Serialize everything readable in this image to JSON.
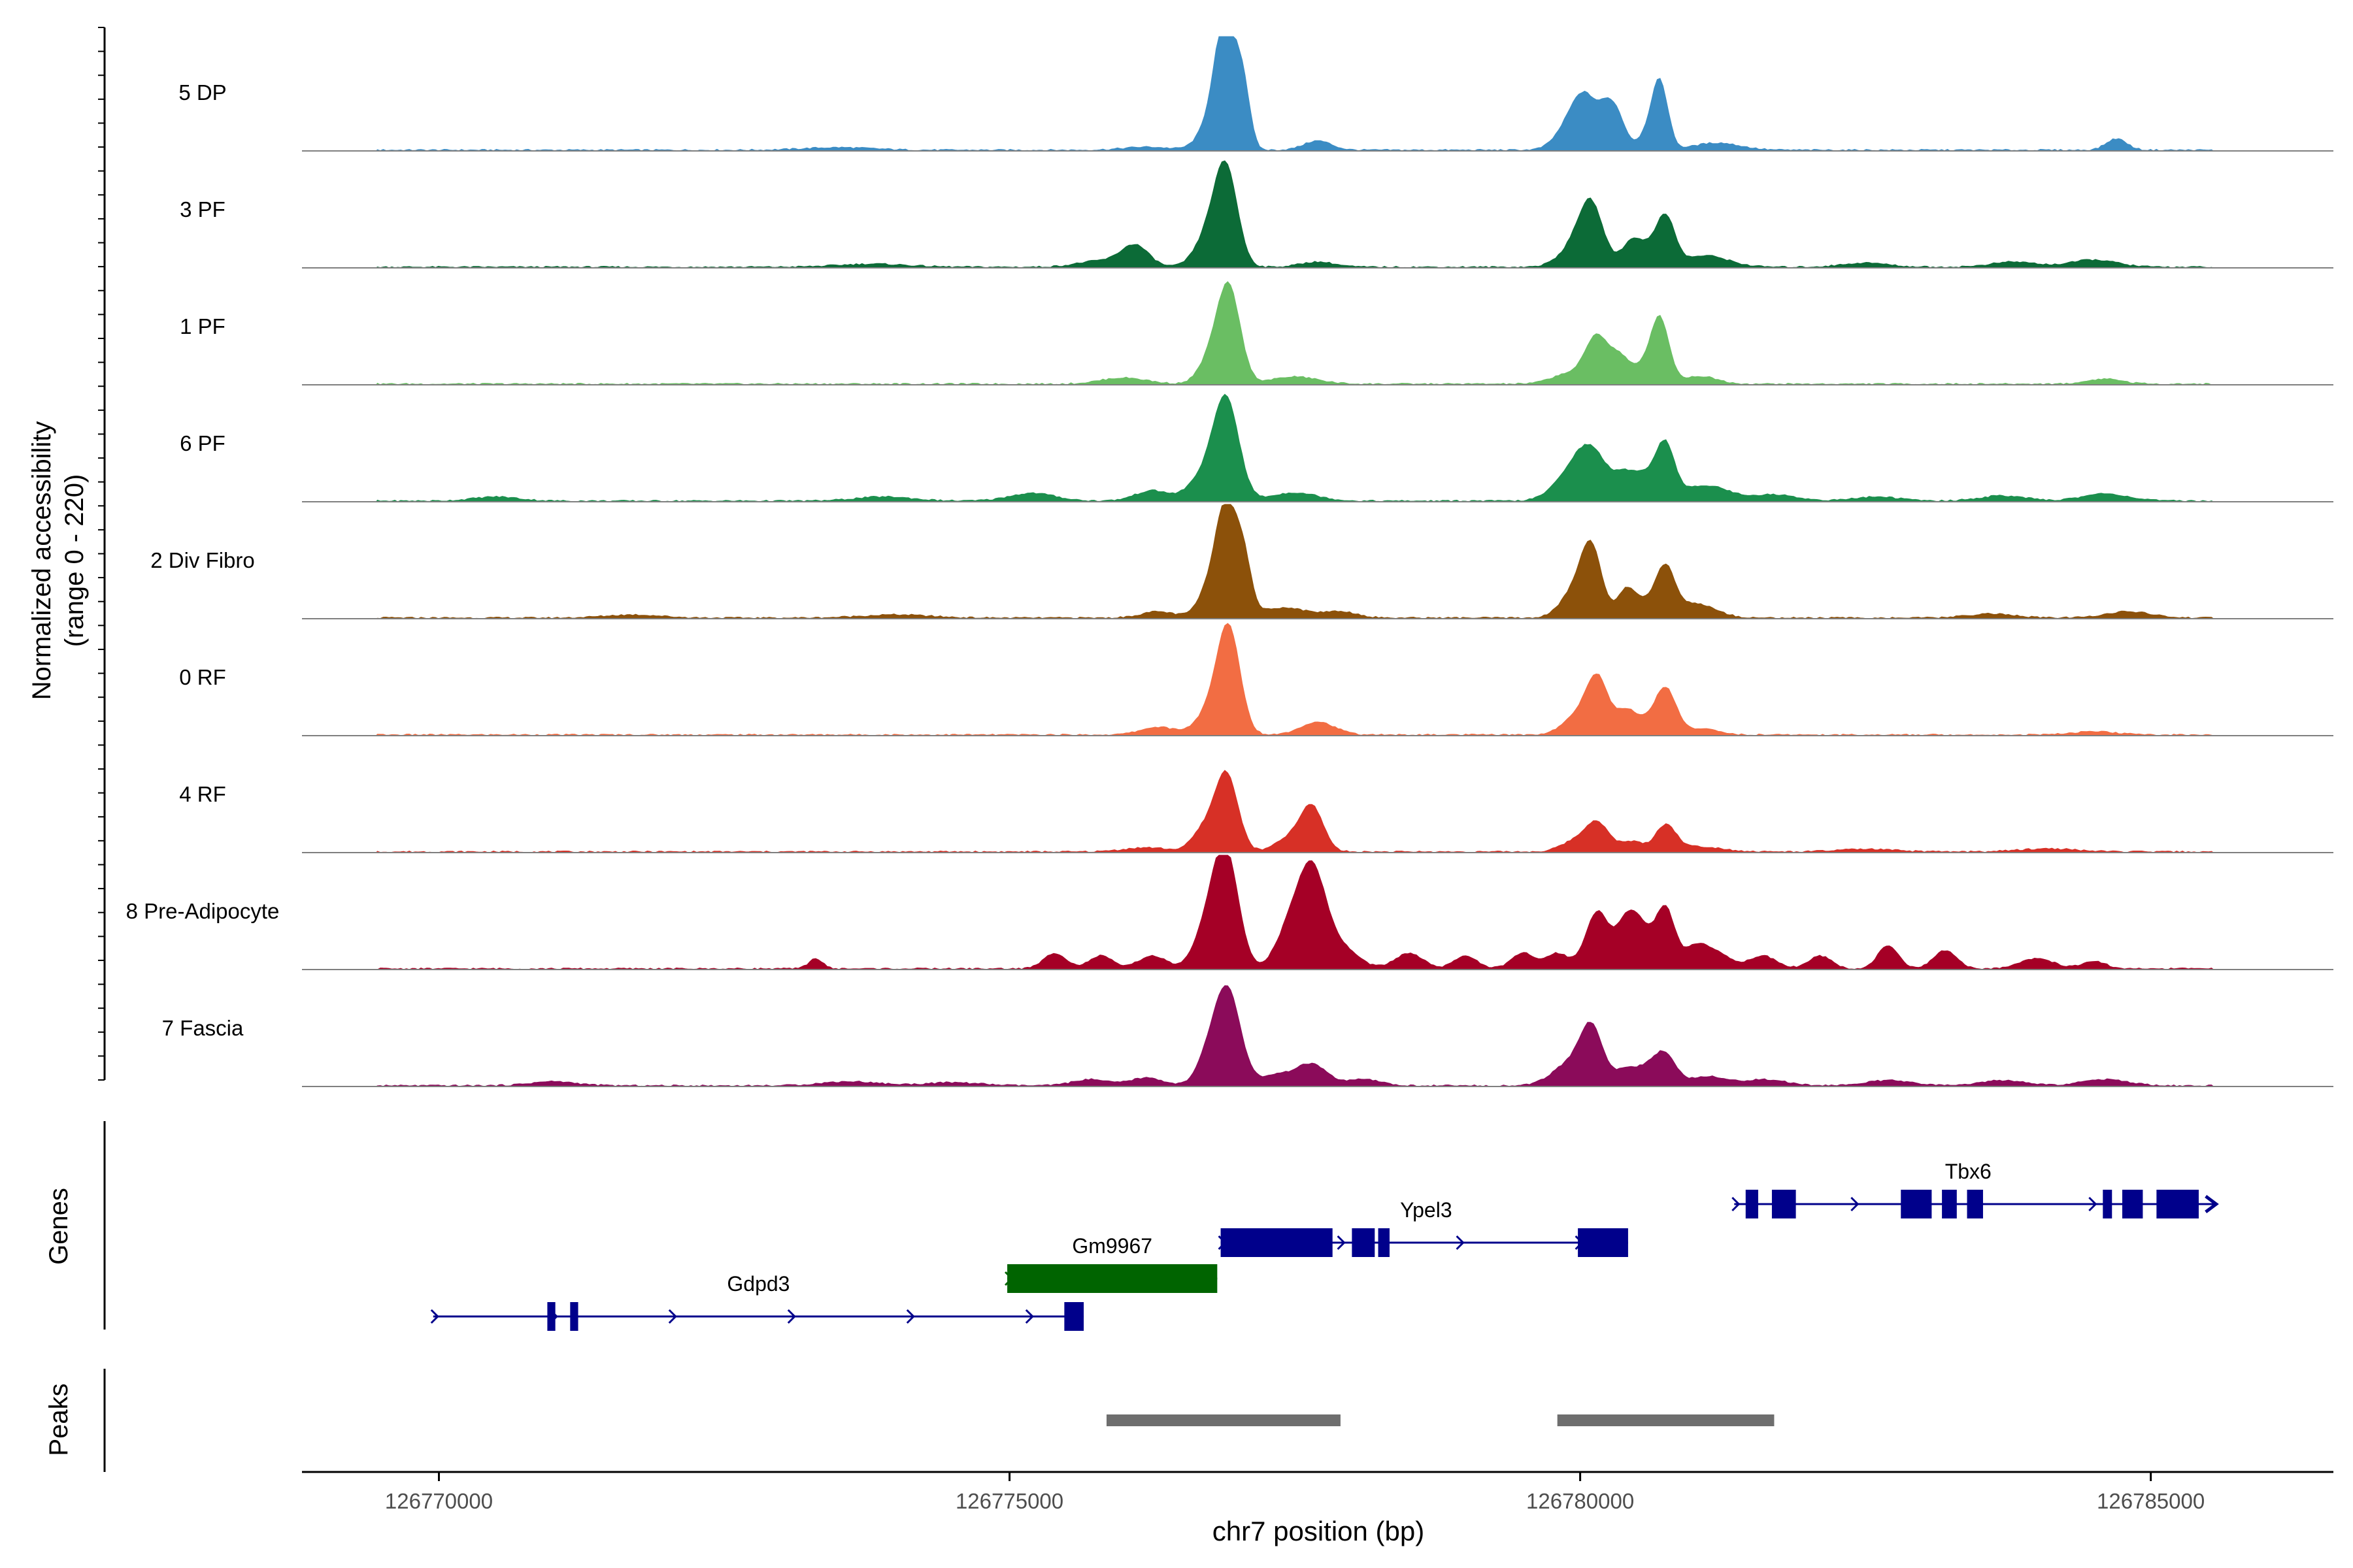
{
  "chart_data": {
    "type": "area",
    "title": "",
    "xlabel": "chr7 position (bp)",
    "ylabel_line1": "Normalized accessibility",
    "ylabel_line2": "(range 0 - 220)",
    "ylim": [
      0,
      220
    ],
    "xlim": [
      126768800,
      126786600
    ],
    "x_ticks": [
      126770000,
      126775000,
      126780000,
      126785000
    ],
    "x_tick_labels": [
      "126770000",
      "126775000",
      "126780000",
      "126785000"
    ],
    "track_labels": {
      "genes": "Genes",
      "peaks": "Peaks"
    },
    "region_start": 126769450,
    "region_end": 126785550,
    "series": [
      {
        "name": "5 DP",
        "color": "#3b8cc4",
        "peaks": [
          [
            126776900,
            220,
            90
          ],
          [
            126777050,
            100,
            60
          ],
          [
            126776800,
            60,
            120
          ],
          [
            126777700,
            18,
            120
          ],
          [
            126780050,
            90,
            110
          ],
          [
            126780250,
            70,
            80
          ],
          [
            126779900,
            40,
            120
          ],
          [
            126780350,
            35,
            70
          ],
          [
            126780700,
            120,
            70
          ],
          [
            126780600,
            30,
            90
          ],
          [
            126781200,
            14,
            200
          ],
          [
            126784700,
            22,
            90
          ],
          [
            126776200,
            6,
            200
          ],
          [
            126773500,
            5,
            300
          ]
        ]
      },
      {
        "name": "3 PF",
        "color": "#0c6b37",
        "peaks": [
          [
            126776900,
            175,
            100
          ],
          [
            126776750,
            60,
            120
          ],
          [
            126776100,
            40,
            120
          ],
          [
            126777700,
            10,
            150
          ],
          [
            126780100,
            90,
            100
          ],
          [
            126780000,
            50,
            150
          ],
          [
            126780450,
            40,
            90
          ],
          [
            126780750,
            85,
            80
          ],
          [
            126780600,
            30,
            120
          ],
          [
            126781100,
            22,
            200
          ],
          [
            126784500,
            14,
            200
          ],
          [
            126783800,
            10,
            200
          ],
          [
            126782500,
            8,
            200
          ],
          [
            126775800,
            12,
            200
          ],
          [
            126773800,
            6,
            300
          ]
        ]
      },
      {
        "name": "1 PF",
        "color": "#6abe63",
        "peaks": [
          [
            126776920,
            185,
            100
          ],
          [
            126776750,
            40,
            100
          ],
          [
            126776000,
            12,
            200
          ],
          [
            126777500,
            14,
            200
          ],
          [
            126780150,
            90,
            100
          ],
          [
            126780350,
            45,
            80
          ],
          [
            126780700,
            120,
            80
          ],
          [
            126780550,
            30,
            100
          ],
          [
            126781050,
            15,
            150
          ],
          [
            126779900,
            20,
            150
          ],
          [
            126784600,
            10,
            150
          ]
        ]
      },
      {
        "name": "6 PF",
        "color": "#1b8f4d",
        "peaks": [
          [
            126776900,
            190,
            110
          ],
          [
            126776700,
            45,
            130
          ],
          [
            126776250,
            20,
            150
          ],
          [
            126775200,
            15,
            200
          ],
          [
            126777500,
            16,
            200
          ],
          [
            126780100,
            90,
            140
          ],
          [
            126779900,
            40,
            150
          ],
          [
            126780400,
            40,
            100
          ],
          [
            126780750,
            90,
            80
          ],
          [
            126780600,
            45,
            120
          ],
          [
            126781100,
            30,
            200
          ],
          [
            126781700,
            12,
            200
          ],
          [
            126784600,
            14,
            200
          ],
          [
            126783700,
            10,
            200
          ],
          [
            126782600,
            8,
            200
          ],
          [
            126773900,
            8,
            250
          ],
          [
            126770500,
            8,
            200
          ]
        ]
      },
      {
        "name": "2 Div Fibro",
        "color": "#8c510a",
        "peaks": [
          [
            126776900,
            205,
            90
          ],
          [
            126777050,
            100,
            70
          ],
          [
            126776750,
            50,
            100
          ],
          [
            126776300,
            12,
            150
          ],
          [
            126777400,
            20,
            200
          ],
          [
            126777900,
            12,
            150
          ],
          [
            126780100,
            125,
            90
          ],
          [
            126779950,
            50,
            120
          ],
          [
            126780400,
            50,
            80
          ],
          [
            126780750,
            80,
            80
          ],
          [
            126780600,
            30,
            120
          ],
          [
            126781000,
            28,
            180
          ],
          [
            126784800,
            12,
            200
          ],
          [
            126783600,
            8,
            200
          ],
          [
            126771700,
            6,
            250
          ],
          [
            126774000,
            6,
            300
          ]
        ]
      },
      {
        "name": "0 RF",
        "color": "#f26d43",
        "peaks": [
          [
            126776920,
            200,
            100
          ],
          [
            126776750,
            40,
            120
          ],
          [
            126776300,
            15,
            150
          ],
          [
            126777700,
            25,
            150
          ],
          [
            126780150,
            110,
            100
          ],
          [
            126779950,
            30,
            120
          ],
          [
            126780400,
            35,
            80
          ],
          [
            126780750,
            85,
            90
          ],
          [
            126780550,
            25,
            120
          ],
          [
            126781050,
            12,
            150
          ],
          [
            126784500,
            6,
            200
          ]
        ]
      },
      {
        "name": "4 RF",
        "color": "#d73026",
        "peaks": [
          [
            126776900,
            150,
            100
          ],
          [
            126776700,
            40,
            100
          ],
          [
            126777650,
            85,
            100
          ],
          [
            126777450,
            25,
            120
          ],
          [
            126776200,
            8,
            200
          ],
          [
            126780150,
            55,
            100
          ],
          [
            126779950,
            20,
            120
          ],
          [
            126780450,
            20,
            100
          ],
          [
            126780750,
            50,
            90
          ],
          [
            126781050,
            10,
            200
          ],
          [
            126784100,
            6,
            250
          ],
          [
            126782500,
            5,
            250
          ]
        ]
      },
      {
        "name": "8 Pre-Adipocyte",
        "color": "#a50026",
        "peaks": [
          [
            126776900,
            200,
            110
          ],
          [
            126776750,
            80,
            120
          ],
          [
            126777650,
            180,
            120
          ],
          [
            126777450,
            70,
            120
          ],
          [
            126777900,
            40,
            150
          ],
          [
            126773300,
            20,
            60
          ],
          [
            126775400,
            30,
            100
          ],
          [
            126775800,
            25,
            100
          ],
          [
            126776250,
            25,
            120
          ],
          [
            126778500,
            30,
            120
          ],
          [
            126779000,
            25,
            100
          ],
          [
            126779500,
            30,
            100
          ],
          [
            126780150,
            110,
            100
          ],
          [
            126780400,
            80,
            90
          ],
          [
            126780750,
            110,
            80
          ],
          [
            126780550,
            70,
            100
          ],
          [
            126781200,
            30,
            120
          ],
          [
            126781600,
            25,
            120
          ],
          [
            126782100,
            25,
            100
          ],
          [
            126782700,
            45,
            90
          ],
          [
            126783200,
            35,
            100
          ],
          [
            126784000,
            20,
            150
          ],
          [
            126784500,
            15,
            100
          ],
          [
            126779800,
            30,
            100
          ],
          [
            126781000,
            40,
            100
          ]
        ]
      },
      {
        "name": "7 Fascia",
        "color": "#8b0b5a",
        "peaks": [
          [
            126776900,
            150,
            100
          ],
          [
            126776750,
            60,
            100
          ],
          [
            126777000,
            40,
            100
          ],
          [
            126777650,
            40,
            130
          ],
          [
            126776200,
            15,
            150
          ],
          [
            126775700,
            12,
            150
          ],
          [
            126777350,
            20,
            150
          ],
          [
            126778100,
            12,
            150
          ],
          [
            126780100,
            105,
            100
          ],
          [
            126779900,
            40,
            150
          ],
          [
            126780400,
            30,
            100
          ],
          [
            126780750,
            55,
            90
          ],
          [
            126780600,
            30,
            100
          ],
          [
            126781100,
            18,
            150
          ],
          [
            126781600,
            12,
            200
          ],
          [
            126784600,
            12,
            200
          ],
          [
            126783700,
            10,
            200
          ],
          [
            126782700,
            10,
            200
          ],
          [
            126771000,
            8,
            200
          ],
          [
            126773600,
            8,
            250
          ],
          [
            126774500,
            6,
            250
          ]
        ]
      }
    ],
    "genes": [
      {
        "name": "Gdpd3",
        "color": "#00008b",
        "start": 126769950,
        "end": 126775650,
        "row": 3,
        "label_x": 126772800,
        "exons": [
          [
            126770950,
            126771020
          ],
          [
            126771150,
            126771220
          ],
          [
            126775480,
            126775650
          ]
        ]
      },
      {
        "name": "Gm9967",
        "color": "#006400",
        "start": 126774980,
        "end": 126776820,
        "row": 2,
        "label_x": 126775900,
        "exons": [
          [
            126774980,
            126776820
          ]
        ]
      },
      {
        "name": "Ypel3",
        "color": "#00008b",
        "start": 126776850,
        "end": 126780420,
        "row": 1,
        "label_x": 126778650,
        "exons": [
          [
            126776850,
            126777830
          ],
          [
            126778000,
            126778200
          ],
          [
            126778230,
            126778330
          ],
          [
            126779980,
            126780420
          ]
        ]
      },
      {
        "name": "Tbx6",
        "color": "#00008b",
        "start": 126781350,
        "end": 126785550,
        "row": 0,
        "label_x": 126783400,
        "exons": [
          [
            126781450,
            126781560
          ],
          [
            126781680,
            126781890
          ],
          [
            126782810,
            126783080
          ],
          [
            126783170,
            126783300
          ],
          [
            126783390,
            126783530
          ],
          [
            126784580,
            126784660
          ],
          [
            126784750,
            126784930
          ],
          [
            126785050,
            126785420
          ]
        ]
      }
    ],
    "peak_regions": [
      [
        126775850,
        126777900
      ],
      [
        126779800,
        126781700
      ]
    ]
  }
}
